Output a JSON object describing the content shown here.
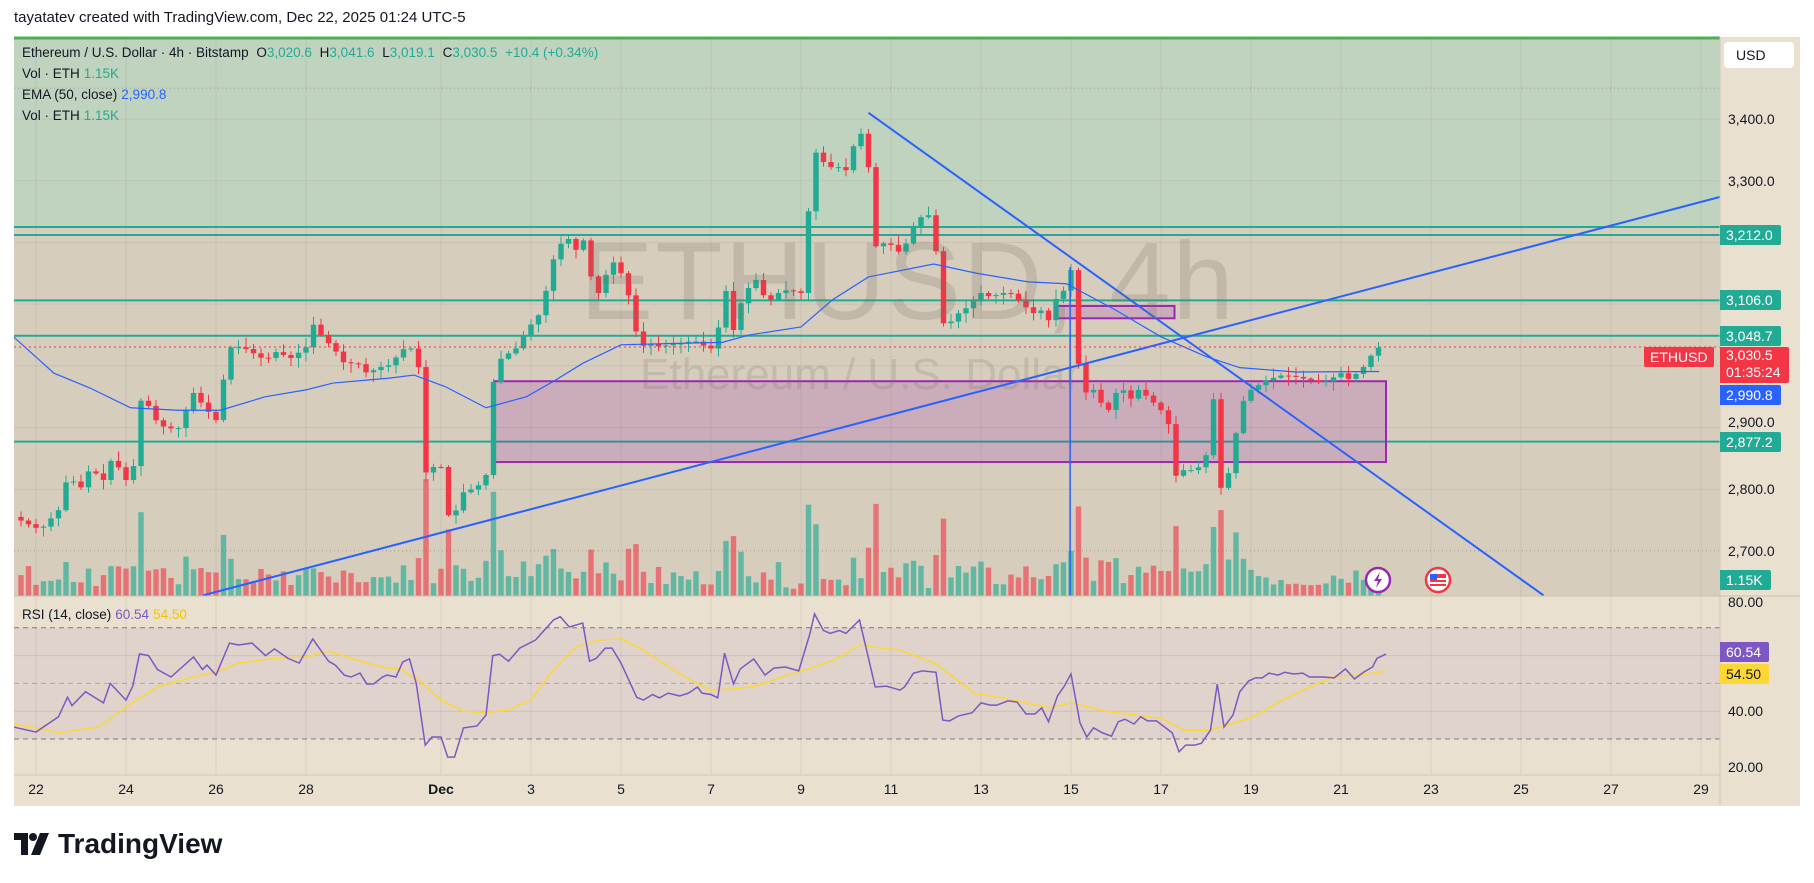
{
  "header": {
    "credit": "tayatatev created with TradingView.com, Dec 22, 2025 01:24 UTC-5"
  },
  "legend": {
    "symbol": "Ethereum / U.S. Dollar · 4h · Bitstamp",
    "o_label": "O",
    "o": "3,020.6",
    "h_label": "H",
    "h": "3,041.6",
    "l_label": "L",
    "l": "3,019.1",
    "c_label": "C",
    "c": "3,030.5",
    "change": "+10.4 (+0.34%)",
    "vol1_label": "Vol · ETH",
    "vol1": "1.15K",
    "ema_label": "EMA (50, close)",
    "ema": "2,990.8",
    "vol2_label": "Vol · ETH",
    "vol2": "1.15K",
    "rsi_label": "RSI (14, close)",
    "rsi": "60.54",
    "rsi_ma": "54.50"
  },
  "watermark": {
    "ticker": "ETHUSD, 4h",
    "name": "Ethereum / U.S. Dollar"
  },
  "price_axis": {
    "currency": "USD",
    "ticks": [
      "3,400.0",
      "3,300.0",
      "2,900.0",
      "2,800.0",
      "2,700.0"
    ],
    "tick_values": [
      3400,
      3300,
      2900,
      2800,
      2700
    ],
    "level_labels": [
      {
        "text": "3,212.0",
        "value": 3212
      },
      {
        "text": "3,106.0",
        "value": 3106
      },
      {
        "text": "3,048.7",
        "value": 3048.7
      },
      {
        "text": "2,877.2",
        "value": 2877.2
      }
    ],
    "last_price": "3,030.5",
    "countdown": "01:35:24",
    "symbol_tag": "ETHUSD",
    "ema_tag": "2,990.8",
    "volume_tag": "1.15K"
  },
  "rsi_axis": {
    "ticks": [
      "80.00",
      "40.00",
      "20.00"
    ],
    "tick_values": [
      80,
      40,
      20
    ],
    "rsi_tag": "60.54",
    "ma_tag": "54.50"
  },
  "time_axis": {
    "labels": [
      "22",
      "24",
      "26",
      "28",
      "Dec",
      "3",
      "5",
      "7",
      "9",
      "11",
      "13",
      "15",
      "17",
      "19",
      "21",
      "23",
      "25",
      "27",
      "29"
    ],
    "days": [
      0,
      2,
      4,
      6,
      9,
      11,
      13,
      15,
      17,
      19,
      21,
      23,
      25,
      27,
      29,
      31,
      33,
      35,
      37
    ]
  },
  "branding": {
    "logo": "TradingView"
  },
  "colors": {
    "up": "#22ab94",
    "down": "#f23645",
    "ema": "#2962ff",
    "rsi": "#7e57c2",
    "rsi_ma": "#fdd835",
    "level": "#22ab94",
    "zone": "#9c27b0"
  },
  "chart_data": {
    "type": "candlestick",
    "title": "Ethereum / U.S. Dollar · 4h · Bitstamp",
    "x_unit": "days since Nov 22, 2025",
    "ylim": [
      2610,
      3480
    ],
    "close_path": [
      [
        -0.5,
        2755
      ],
      [
        0.1,
        2734
      ],
      [
        0.5,
        2766
      ],
      [
        0.7,
        2820
      ],
      [
        1.0,
        2803
      ],
      [
        1.2,
        2834
      ],
      [
        1.5,
        2815
      ],
      [
        1.7,
        2852
      ],
      [
        2.0,
        2815
      ],
      [
        2.2,
        2842
      ],
      [
        2.35,
        2956
      ],
      [
        2.7,
        2907
      ],
      [
        2.85,
        2901
      ],
      [
        3.15,
        2896
      ],
      [
        3.3,
        2923
      ],
      [
        3.5,
        2956
      ],
      [
        3.8,
        2928
      ],
      [
        4.0,
        2912
      ],
      [
        4.3,
        3030
      ],
      [
        4.6,
        3030
      ],
      [
        5.1,
        3009
      ],
      [
        5.4,
        3026
      ],
      [
        5.6,
        3009
      ],
      [
        6.0,
        3030
      ],
      [
        6.2,
        3074
      ],
      [
        6.35,
        3047
      ],
      [
        6.6,
        3030
      ],
      [
        6.85,
        3004
      ],
      [
        7.15,
        3004
      ],
      [
        7.35,
        2988
      ],
      [
        7.65,
        2998
      ],
      [
        7.85,
        3001
      ],
      [
        8.15,
        3026
      ],
      [
        8.3,
        3034
      ],
      [
        8.5,
        2998
      ],
      [
        8.65,
        2826
      ],
      [
        8.8,
        2836
      ],
      [
        9.0,
        2836
      ],
      [
        9.2,
        2742
      ],
      [
        9.5,
        2795
      ],
      [
        9.8,
        2803
      ],
      [
        10.0,
        2823
      ],
      [
        10.2,
        3004
      ],
      [
        10.4,
        3015
      ],
      [
        10.7,
        3030
      ],
      [
        10.9,
        3058
      ],
      [
        11.2,
        3085
      ],
      [
        11.35,
        3126
      ],
      [
        11.55,
        3188
      ],
      [
        11.8,
        3209
      ],
      [
        12.0,
        3188
      ],
      [
        12.15,
        3209
      ],
      [
        12.35,
        3139
      ],
      [
        12.5,
        3118
      ],
      [
        12.8,
        3171
      ],
      [
        13.0,
        3150
      ],
      [
        13.2,
        3107
      ],
      [
        13.4,
        3030
      ],
      [
        13.65,
        3036
      ],
      [
        13.9,
        3030
      ],
      [
        14.1,
        3036
      ],
      [
        14.4,
        3036
      ],
      [
        14.6,
        3042
      ],
      [
        14.9,
        3030
      ],
      [
        15.1,
        3026
      ],
      [
        15.3,
        3134
      ],
      [
        15.5,
        3058
      ],
      [
        15.7,
        3110
      ],
      [
        15.85,
        3128
      ],
      [
        16.0,
        3139
      ],
      [
        16.25,
        3102
      ],
      [
        16.5,
        3118
      ],
      [
        16.7,
        3123
      ],
      [
        17.0,
        3118
      ],
      [
        17.15,
        3241
      ],
      [
        17.35,
        3355
      ],
      [
        17.55,
        3322
      ],
      [
        17.85,
        3322
      ],
      [
        18.0,
        3317
      ],
      [
        18.3,
        3387
      ],
      [
        18.5,
        3322
      ],
      [
        18.65,
        3193
      ],
      [
        18.8,
        3199
      ],
      [
        19.0,
        3196
      ],
      [
        19.2,
        3183
      ],
      [
        19.3,
        3193
      ],
      [
        19.5,
        3225
      ],
      [
        19.7,
        3244
      ],
      [
        19.95,
        3244
      ],
      [
        20.1,
        3069
      ],
      [
        20.3,
        3069
      ],
      [
        20.5,
        3085
      ],
      [
        20.7,
        3095
      ],
      [
        21.0,
        3118
      ],
      [
        21.2,
        3112
      ],
      [
        21.5,
        3118
      ],
      [
        21.65,
        3118
      ],
      [
        22.0,
        3095
      ],
      [
        22.15,
        3085
      ],
      [
        22.35,
        3090
      ],
      [
        22.45,
        3063
      ],
      [
        22.65,
        3107
      ],
      [
        22.85,
        3123
      ],
      [
        23.0,
        3155
      ],
      [
        23.15,
        3009
      ],
      [
        23.3,
        2956
      ],
      [
        23.5,
        2961
      ],
      [
        23.7,
        2936
      ],
      [
        23.8,
        2923
      ],
      [
        24.0,
        2956
      ],
      [
        24.2,
        2961
      ],
      [
        24.35,
        2945
      ],
      [
        24.5,
        2961
      ],
      [
        24.7,
        2950
      ],
      [
        25.0,
        2928
      ],
      [
        25.2,
        2901
      ],
      [
        25.3,
        2820
      ],
      [
        25.5,
        2831
      ],
      [
        25.7,
        2831
      ],
      [
        25.85,
        2836
      ],
      [
        26.0,
        2855
      ],
      [
        26.2,
        2964
      ],
      [
        26.35,
        2782
      ],
      [
        26.5,
        2826
      ],
      [
        26.7,
        2904
      ],
      [
        26.85,
        2948
      ],
      [
        27.0,
        2961
      ],
      [
        27.35,
        2977
      ],
      [
        27.7,
        2985
      ],
      [
        28.0,
        2982
      ],
      [
        28.3,
        2977
      ],
      [
        28.6,
        2972
      ],
      [
        29.0,
        2988
      ],
      [
        29.2,
        2977
      ],
      [
        29.35,
        2988
      ],
      [
        29.5,
        2998
      ],
      [
        29.7,
        3020
      ],
      [
        29.85,
        3030.5
      ]
    ],
    "ema50": [
      [
        -0.5,
        3047
      ],
      [
        0.4,
        2988
      ],
      [
        1.2,
        2964
      ],
      [
        2.1,
        2932
      ],
      [
        3.15,
        2928
      ],
      [
        4.1,
        2928
      ],
      [
        5.1,
        2950
      ],
      [
        6.0,
        2961
      ],
      [
        6.6,
        2972
      ],
      [
        7.85,
        2980
      ],
      [
        8.4,
        2985
      ],
      [
        9.1,
        2966
      ],
      [
        10.0,
        2932
      ],
      [
        10.9,
        2950
      ],
      [
        11.55,
        2977
      ],
      [
        12.15,
        3004
      ],
      [
        13.0,
        3034
      ],
      [
        14.0,
        3036
      ],
      [
        15.25,
        3038
      ],
      [
        15.85,
        3050
      ],
      [
        17.0,
        3063
      ],
      [
        17.7,
        3107
      ],
      [
        18.5,
        3144
      ],
      [
        19.95,
        3165
      ],
      [
        20.9,
        3150
      ],
      [
        22.05,
        3136
      ],
      [
        22.9,
        3133
      ],
      [
        24.0,
        3090
      ],
      [
        25.0,
        3047
      ],
      [
        26.0,
        3015
      ],
      [
        26.75,
        2997
      ],
      [
        28.0,
        2990
      ],
      [
        29.85,
        2990.8
      ]
    ],
    "rsi": [
      [
        -0.5,
        34.3
      ],
      [
        0,
        32.5
      ],
      [
        0.5,
        38
      ],
      [
        0.7,
        45
      ],
      [
        0.8,
        42
      ],
      [
        1.1,
        47
      ],
      [
        1.5,
        43
      ],
      [
        1.65,
        50
      ],
      [
        2.0,
        44
      ],
      [
        2.15,
        49
      ],
      [
        2.3,
        60.6
      ],
      [
        2.5,
        60
      ],
      [
        2.7,
        55
      ],
      [
        3.0,
        52.3
      ],
      [
        3.5,
        59.5
      ],
      [
        3.7,
        55
      ],
      [
        3.8,
        56.6
      ],
      [
        4.0,
        53
      ],
      [
        4.3,
        64.5
      ],
      [
        4.5,
        63.8
      ],
      [
        4.8,
        64.5
      ],
      [
        5.1,
        60
      ],
      [
        5.3,
        62.4
      ],
      [
        5.6,
        59
      ],
      [
        5.85,
        57.3
      ],
      [
        6.15,
        66
      ],
      [
        6.5,
        58
      ],
      [
        6.65,
        56.6
      ],
      [
        6.85,
        53
      ],
      [
        7.0,
        52.3
      ],
      [
        7.2,
        53.7
      ],
      [
        7.35,
        49.8
      ],
      [
        7.5,
        49.8
      ],
      [
        7.7,
        52.3
      ],
      [
        7.8,
        53
      ],
      [
        8.0,
        52.3
      ],
      [
        8.15,
        57.7
      ],
      [
        8.3,
        58.8
      ],
      [
        8.45,
        50
      ],
      [
        8.65,
        27.8
      ],
      [
        8.8,
        30.7
      ],
      [
        9.0,
        30.7
      ],
      [
        9.15,
        23.5
      ],
      [
        9.3,
        23.5
      ],
      [
        9.5,
        34
      ],
      [
        9.8,
        34.7
      ],
      [
        10.0,
        38.6
      ],
      [
        10.15,
        60
      ],
      [
        10.3,
        60.5
      ],
      [
        10.5,
        58
      ],
      [
        10.75,
        62.7
      ],
      [
        11.1,
        65.6
      ],
      [
        11.5,
        72.8
      ],
      [
        11.65,
        74
      ],
      [
        11.85,
        70.3
      ],
      [
        12.15,
        71.7
      ],
      [
        12.3,
        58
      ],
      [
        12.45,
        59
      ],
      [
        12.65,
        62.7
      ],
      [
        12.8,
        62.7
      ],
      [
        13.0,
        57.3
      ],
      [
        13.35,
        45
      ],
      [
        13.5,
        44
      ],
      [
        13.7,
        46
      ],
      [
        13.85,
        44.8
      ],
      [
        14.05,
        46.5
      ],
      [
        14.3,
        45.5
      ],
      [
        14.5,
        46.5
      ],
      [
        14.7,
        48.7
      ],
      [
        14.8,
        46.5
      ],
      [
        15.0,
        46
      ],
      [
        15.15,
        44.8
      ],
      [
        15.3,
        60.9
      ],
      [
        15.5,
        49.8
      ],
      [
        15.65,
        55.2
      ],
      [
        15.95,
        58.8
      ],
      [
        16.2,
        53
      ],
      [
        16.4,
        55.5
      ],
      [
        16.65,
        55.9
      ],
      [
        16.95,
        54.5
      ],
      [
        17.2,
        68
      ],
      [
        17.3,
        75
      ],
      [
        17.5,
        69
      ],
      [
        17.65,
        68
      ],
      [
        17.85,
        69
      ],
      [
        18.0,
        68
      ],
      [
        18.3,
        72.8
      ],
      [
        18.65,
        48.7
      ],
      [
        18.9,
        49
      ],
      [
        19.2,
        47.6
      ],
      [
        19.3,
        48.7
      ],
      [
        19.5,
        53.7
      ],
      [
        19.7,
        54.5
      ],
      [
        20.0,
        54
      ],
      [
        20.15,
        36.8
      ],
      [
        20.3,
        36.5
      ],
      [
        20.5,
        38.3
      ],
      [
        20.8,
        39.4
      ],
      [
        21.0,
        43
      ],
      [
        21.2,
        42.2
      ],
      [
        21.35,
        42.2
      ],
      [
        21.6,
        43.7
      ],
      [
        21.8,
        43.3
      ],
      [
        22.0,
        39
      ],
      [
        22.2,
        39
      ],
      [
        22.35,
        41.2
      ],
      [
        22.5,
        36.2
      ],
      [
        22.7,
        45.5
      ],
      [
        22.85,
        49
      ],
      [
        23.0,
        53.4
      ],
      [
        23.2,
        35.8
      ],
      [
        23.35,
        30.7
      ],
      [
        23.5,
        34
      ],
      [
        23.7,
        32.2
      ],
      [
        23.9,
        31
      ],
      [
        24.05,
        36.2
      ],
      [
        24.2,
        37.1
      ],
      [
        24.4,
        35.4
      ],
      [
        24.55,
        38
      ],
      [
        24.7,
        36.5
      ],
      [
        24.9,
        36.5
      ],
      [
        25.25,
        32.2
      ],
      [
        25.4,
        25.4
      ],
      [
        25.55,
        27.8
      ],
      [
        25.75,
        27.8
      ],
      [
        25.9,
        28.5
      ],
      [
        26.1,
        33.2
      ],
      [
        26.25,
        49.8
      ],
      [
        26.4,
        34.3
      ],
      [
        26.6,
        38.6
      ],
      [
        26.75,
        47
      ],
      [
        26.95,
        50.9
      ],
      [
        27.1,
        52
      ],
      [
        27.25,
        52
      ],
      [
        27.4,
        53.7
      ],
      [
        27.6,
        53
      ],
      [
        27.75,
        54
      ],
      [
        27.95,
        53.4
      ],
      [
        28.15,
        53.7
      ],
      [
        28.3,
        52.3
      ],
      [
        28.6,
        52.3
      ],
      [
        28.85,
        52
      ],
      [
        29.1,
        55.2
      ],
      [
        29.3,
        51.6
      ],
      [
        29.5,
        54
      ],
      [
        29.7,
        55.9
      ],
      [
        29.8,
        59
      ],
      [
        30.0,
        60.54
      ]
    ],
    "rsi_ma": [
      [
        -0.5,
        35.4
      ],
      [
        0,
        34
      ],
      [
        0.5,
        32.2
      ],
      [
        1.4,
        34.3
      ],
      [
        2.0,
        41.5
      ],
      [
        2.7,
        48.7
      ],
      [
        3.5,
        52.3
      ],
      [
        4.0,
        54
      ],
      [
        4.5,
        57.3
      ],
      [
        5.3,
        59
      ],
      [
        6.0,
        59.5
      ],
      [
        6.5,
        61.6
      ],
      [
        7.2,
        58
      ],
      [
        7.8,
        55.5
      ],
      [
        8.1,
        55.2
      ],
      [
        8.5,
        51.2
      ],
      [
        9.0,
        44
      ],
      [
        9.5,
        40
      ],
      [
        10.0,
        39.4
      ],
      [
        10.5,
        40.5
      ],
      [
        11.0,
        44
      ],
      [
        11.5,
        55
      ],
      [
        12.0,
        63
      ],
      [
        12.5,
        65.6
      ],
      [
        13.0,
        66
      ],
      [
        13.5,
        62
      ],
      [
        14.0,
        56.6
      ],
      [
        14.5,
        51.6
      ],
      [
        15.0,
        47.6
      ],
      [
        15.5,
        48
      ],
      [
        16.0,
        49
      ],
      [
        16.7,
        53
      ],
      [
        17.3,
        55.9
      ],
      [
        17.8,
        58.8
      ],
      [
        18.3,
        63.8
      ],
      [
        18.8,
        62.7
      ],
      [
        19.2,
        62
      ],
      [
        20.0,
        57
      ],
      [
        20.85,
        46.5
      ],
      [
        21.8,
        43.7
      ],
      [
        22.5,
        41.2
      ],
      [
        23.0,
        43
      ],
      [
        23.8,
        39.9
      ],
      [
        24.7,
        38
      ],
      [
        25.0,
        37.5
      ],
      [
        25.5,
        33.2
      ],
      [
        26.0,
        33
      ],
      [
        26.35,
        34.3
      ],
      [
        27.05,
        38
      ],
      [
        27.7,
        44
      ],
      [
        28.4,
        49.4
      ],
      [
        28.9,
        52.7
      ],
      [
        29.45,
        53
      ],
      [
        30.0,
        54.5
      ]
    ],
    "rsi_levels": {
      "upper": 70,
      "middle": 50,
      "lower": 30
    },
    "rsi_ylim": [
      17,
      82
    ],
    "horizontal_levels": [
      3225,
      3212,
      3106,
      3048.7,
      2877.2
    ],
    "resistance_zone_from": 3225,
    "trendlines": [
      {
        "from": [
          3.71,
          2628
        ],
        "to": [
          37.44,
          3274
        ]
      },
      {
        "from": [
          18.5,
          3410
        ],
        "to": [
          33.5,
          2628
        ]
      }
    ],
    "vertical_line": {
      "day": 22.98,
      "from": 3160,
      "to": 2610
    },
    "boxes": [
      {
        "d1": 10.2,
        "d2": 30.0,
        "p1": 2975,
        "p2": 2844
      },
      {
        "d1": 22.7,
        "d2": 25.3,
        "p1": 3097,
        "p2": 3077
      }
    ]
  }
}
